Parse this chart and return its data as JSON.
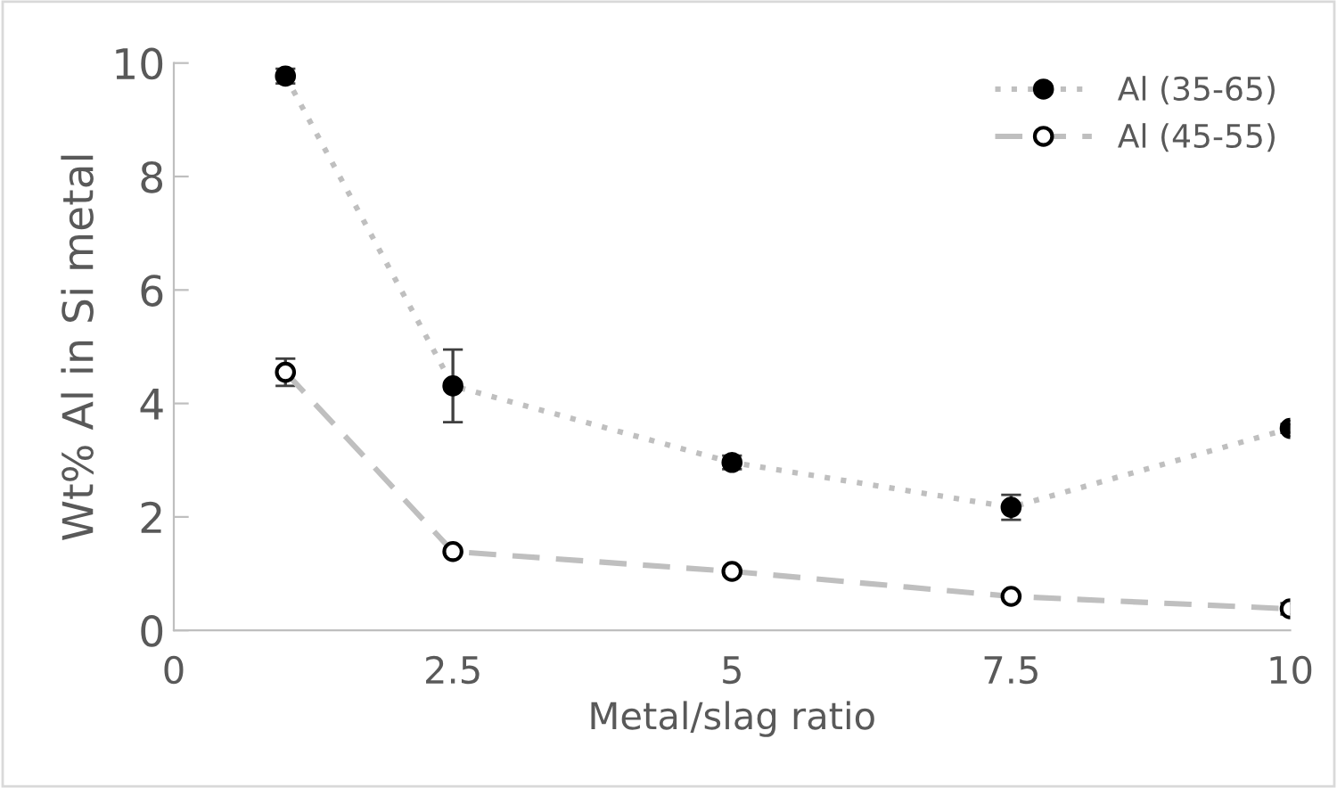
{
  "chart_data": {
    "type": "line",
    "xlabel": "Metal/slag ratio",
    "ylabel": "Wt% Al in Si metal",
    "x": [
      1,
      2.5,
      5,
      7.5,
      10
    ],
    "series": [
      {
        "name": "Al (35-65)",
        "color": "#000000",
        "line_style": "dotted",
        "marker": "circle",
        "values": [
          9.77,
          4.31,
          2.96,
          2.17,
          3.56
        ],
        "errors": [
          0.13,
          0.64,
          0.12,
          0.22,
          0.08
        ]
      },
      {
        "name": "Al (45-55)",
        "color": "#ffffff",
        "line_style": "dashed",
        "marker": "circle",
        "values": [
          4.55,
          1.39,
          1.04,
          0.6,
          0.38
        ],
        "errors": [
          0.24,
          null,
          null,
          null,
          0.1
        ]
      }
    ],
    "xlim": [
      0,
      10
    ],
    "xticks": [
      0,
      2.5,
      5,
      7.5,
      10
    ],
    "ylim": [
      0,
      10
    ],
    "yticks": [
      0,
      2,
      4,
      6,
      8,
      10
    ],
    "grid": false,
    "legend": "top right"
  }
}
